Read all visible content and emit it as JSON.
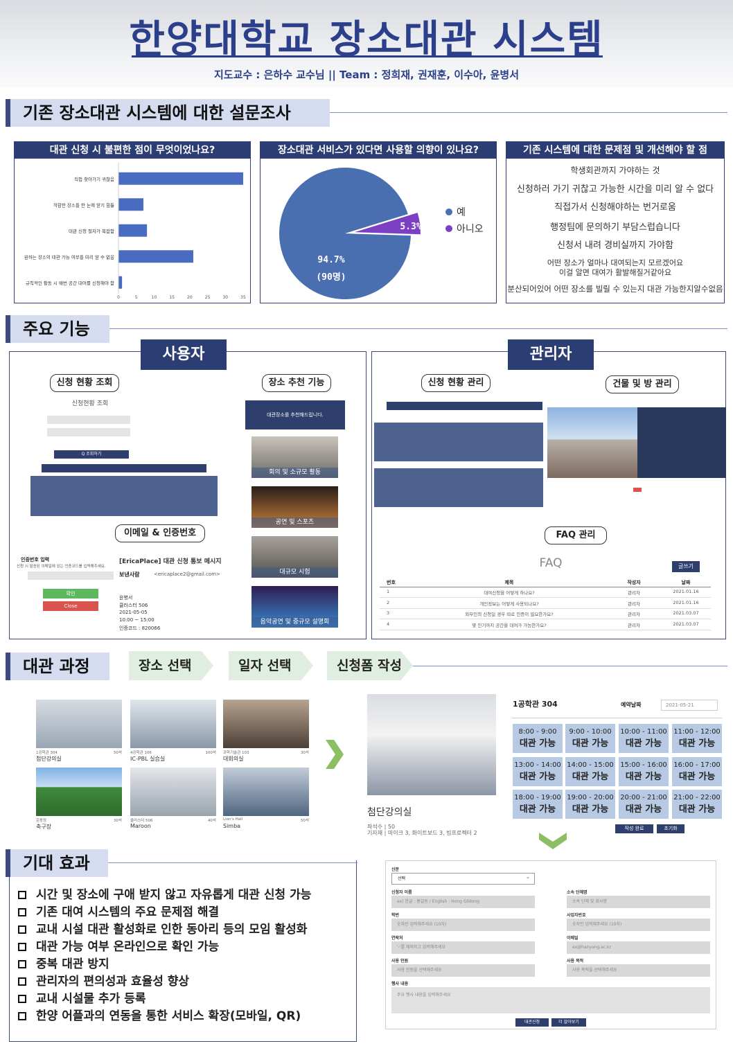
{
  "header": {
    "title": "한양대학교 장소대관 시스템",
    "subtitle": "지도교수 : 은하수 교수님  ||  Team : 정희재, 권재훈, 이수아, 윤병서"
  },
  "sections": {
    "survey": "기존 장소대관 시스템에 대한 설문조사",
    "features": "주요 기능",
    "process": "대관 과정",
    "effects": "기대 효과"
  },
  "survey": {
    "q1": "대관 신청 시 불편한 점이 무엇이었나요?",
    "q2": "장소대관 서비스가 있다면 사용할 의향이 있나요?",
    "q3": "기존 시스템에 대한 문제점 및 개선해야 할 점",
    "opinions": [
      "학생회관까지 가야하는 것",
      "신청하러 가기 귀찮고 가능한 시간을 미리 알 수 없다",
      "직접가서 신청해야하는 번거로움",
      "행정팀에 문의하기 부담스럽습니다",
      "신청서 내려 경비실까지 가야함",
      "어떤 장소가 얼마나 대여되는지 모르겠어요",
      "이걸 알면 대여가 활발해질거같아요",
      "분산되어있어 어떤 장소를 빌릴 수 있는지 대관 가능한지알수없음"
    ]
  },
  "chart_data": [
    {
      "type": "bar",
      "orientation": "horizontal",
      "title": "대관 신청 시 불편한 점이 무엇이었나요?",
      "categories": [
        "직접 찾아가기 귀찮음",
        "적합한 장소를 한 눈에 알기 힘듦",
        "대관 신청 절차가 복잡함",
        "원하는 장소의 대관 가능 여부를 미리 알 수 없음",
        "규칙적인 활동 시 매번 공간 대여를 신청해야 함"
      ],
      "values": [
        35,
        7,
        8,
        21,
        1
      ],
      "xlim": [
        0,
        35
      ],
      "xticks": [
        "0",
        "5",
        "10",
        "15",
        "20",
        "25",
        "30",
        "35"
      ],
      "color": "#4a6cc0"
    },
    {
      "type": "pie",
      "title": "장소대관 서비스가 있다면 사용할 의향이 있나요?",
      "labels": [
        "예",
        "아니오"
      ],
      "values": [
        94.7,
        5.3
      ],
      "data_labels": [
        "94.7%",
        "5.3%"
      ],
      "count_label": "(90명)",
      "colors": [
        "#4a6fb0",
        "#7b3fc4"
      ],
      "legend": "right"
    }
  ],
  "features": {
    "user_role": "사용자",
    "admin_role": "관리자",
    "user_pills": [
      "신청 현황 조회",
      "장소 추천 기능",
      "이메일 & 인증번호"
    ],
    "admin_pills": [
      "신청 현황 관리",
      "건물 및 방 관리",
      "FAQ 관리"
    ],
    "lookup_title": "신청현황 조회",
    "lookup_button": "Q 조회하기",
    "recommend_banner": "대관장소를 추천해드립니다.",
    "recommend_items": [
      "회의 및 소규모 활동",
      "공연 및 스포츠",
      "대규모 시험",
      "음악공연 및 중규모 설명회"
    ],
    "auth_title": "인증번호 입력",
    "auth_desc": "신청 시 발송된 이메일에 있는 인증코드를 입력해주세요.",
    "auth_confirm": "확인",
    "auth_close": "Close",
    "email_subject": "[EricaPlace] 대관 신청 통보 메시지",
    "email_sender_label": "보낸사람",
    "email_sender": "<ericaplace2@gmail.com>",
    "email_body": [
      "윤병서",
      "클러스터 506",
      "2021-05-05",
      "10:00 ~ 15:00",
      "인증코드 : 820066"
    ],
    "faq_title": "FAQ",
    "faq_write": "글쓰기",
    "faq_headers": [
      "번호",
      "제목",
      "작성자",
      "날짜"
    ],
    "faq_rows": [
      [
        "1",
        "대여신청을 어떻게 하나요?",
        "관리자",
        "2021.01.16"
      ],
      [
        "2",
        "개인정보는 어떻게 사용되나요?",
        "관리자",
        "2021.01.16"
      ],
      [
        "3",
        "외부인의 신청일 경우 따로 인증이 필요한가요?",
        "관리자",
        "2021.03.07"
      ],
      [
        "4",
        "몇 인기까지 공간을 대여가 가능한가요?",
        "관리자",
        "2021.03.07"
      ]
    ]
  },
  "process": {
    "steps": [
      "장소 선택",
      "일자 선택",
      "신청폼 작성"
    ],
    "rooms": [
      {
        "code": "1공학관 304",
        "cap": "50석",
        "name": "첨단강의실"
      },
      {
        "code": "4공학관 106",
        "cap": "100석",
        "name": "IC-PBL 실습실"
      },
      {
        "code": "과학기술관 103",
        "cap": "30석",
        "name": "대회의실"
      },
      {
        "code": "운동장",
        "cap": "30석",
        "name": "축구장"
      },
      {
        "code": "클러스터 506",
        "cap": "40석",
        "name": "Maroon"
      },
      {
        "code": "Lion's Hall",
        "cap": "50석",
        "name": "Simba"
      }
    ],
    "selected_room": "첨단강의실",
    "selected_info": [
      "좌석수 | 50",
      "기자재 | 마이크 3, 화이트보드 3, 빔프로젝터 2"
    ],
    "schedule_room": "1공학관 304",
    "reserve_date_label": "예약날짜",
    "reserve_date": "2021-05-21",
    "slots": [
      "8:00 - 9:00",
      "9:00 - 10:00",
      "10:00 - 11:00",
      "11:00 - 12:00",
      "13:00 - 14:00",
      "14:00 - 15:00",
      "15:00 - 16:00",
      "16:00 - 17:00",
      "18:00 - 19:00",
      "19:00 - 20:00",
      "20:00 - 21:00",
      "21:00 - 22:00"
    ],
    "slot_status": "대관 가능",
    "done_button": "작성 완료",
    "reset_button": "초기화",
    "form": {
      "identity_label": "신분",
      "identity_value": "선택",
      "name_label": "신청자 이름",
      "name_ph": "ex) 한글 : 홍길동 / English : Hong Gildong",
      "org_label": "소속 단체명",
      "org_ph": "소속 단체 및 회사명",
      "sid_label": "학번",
      "sid_ph": "숫자만 입력해주세요 (10자)",
      "biz_label": "사업자번호",
      "biz_ph": "숫자만 입력해주세요 (10자)",
      "phone_label": "연락처",
      "phone_ph": "'-'를 제외하고 입력해주세요",
      "email_label": "이메일",
      "email_ph": "ex@hanyang.ac.kr",
      "people_label": "사용 인원",
      "people_ph": "사용 인원을 선택해주세요",
      "purpose_label": "사용 목적",
      "purpose_ph": "사용 목적을 선택해주세요",
      "event_label": "행사 내용",
      "event_ph": "주요 행사 내용을 입력해주세요",
      "submit": "대관신청",
      "more": "더 알아보기"
    }
  },
  "effects": [
    "시간 및 장소에 구애 받지 않고 자유롭게 대관 신청 가능",
    "기존 대여 시스템의 주요 문제점 해결",
    "교내 시설 대관 활성화로 인한 동아리 등의 모임 활성화",
    "대관 가능 여부 온라인으로 확인 가능",
    "중복 대관 방지",
    "관리자의 편의성과 효율성 향상",
    "교내 시설물 추가 등록",
    "한양 어플과의 연동을 통한 서비스 확장(모바일, QR)"
  ]
}
